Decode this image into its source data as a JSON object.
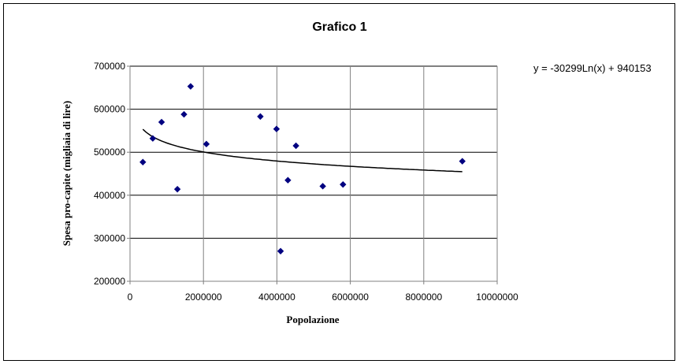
{
  "chart_data": {
    "type": "scatter",
    "title": "Grafico 1",
    "xlabel": "Popolazione",
    "ylabel": "Spesa pro-capite (migliaia di lire)",
    "xlim": [
      0,
      10000000
    ],
    "ylim": [
      200000,
      700000
    ],
    "xticks": [
      0,
      2000000,
      4000000,
      6000000,
      8000000,
      10000000
    ],
    "xtick_labels": [
      "0",
      "2000000",
      "4000000",
      "6000000",
      "8000000",
      "10000000"
    ],
    "yticks": [
      200000,
      300000,
      400000,
      500000,
      600000,
      700000
    ],
    "ytick_labels": [
      "200000",
      "300000",
      "400000",
      "500000",
      "600000",
      "700000"
    ],
    "grid": true,
    "points": [
      {
        "x": 350000,
        "y": 477000
      },
      {
        "x": 620000,
        "y": 532000
      },
      {
        "x": 860000,
        "y": 570000
      },
      {
        "x": 1290000,
        "y": 414000
      },
      {
        "x": 1470000,
        "y": 588000
      },
      {
        "x": 1650000,
        "y": 653000
      },
      {
        "x": 2080000,
        "y": 519000
      },
      {
        "x": 3550000,
        "y": 583000
      },
      {
        "x": 3990000,
        "y": 554000
      },
      {
        "x": 4100000,
        "y": 270000
      },
      {
        "x": 4300000,
        "y": 435000
      },
      {
        "x": 4520000,
        "y": 515000
      },
      {
        "x": 5250000,
        "y": 421000
      },
      {
        "x": 5800000,
        "y": 425000
      },
      {
        "x": 9050000,
        "y": 479000
      }
    ],
    "marker_color": "#000080",
    "trendline": {
      "type": "logarithmic",
      "a": -30299,
      "b": 940153,
      "x_range": [
        350000,
        9050000
      ],
      "equation_label": "y = -30299Ln(x) + 940153"
    }
  }
}
